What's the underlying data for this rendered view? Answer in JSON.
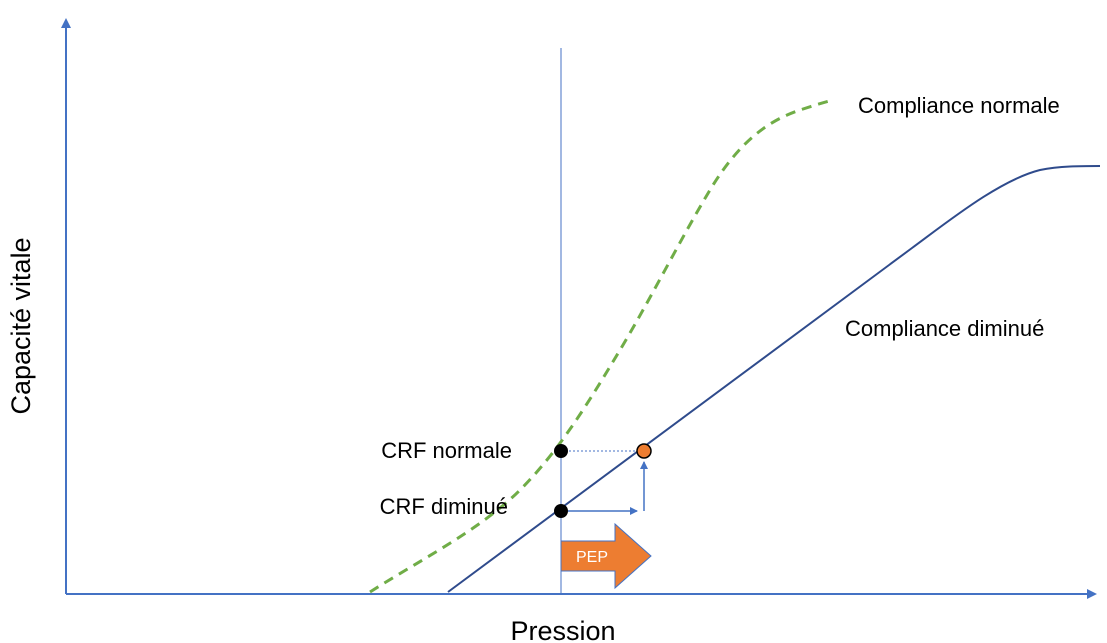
{
  "axes": {
    "x_label": "Pression",
    "y_label": "Capacité vitale"
  },
  "curves": {
    "normal": {
      "label": "Compliance normale",
      "color": "#70ad47",
      "style": "dashed"
    },
    "reduced": {
      "label": "Compliance diminué",
      "color": "#2f4b8c",
      "style": "solid"
    }
  },
  "points": {
    "crf_normal": {
      "label": "CRF normale",
      "color": "#000000"
    },
    "crf_reduced": {
      "label": "CRF diminué",
      "color": "#000000"
    },
    "after_pep": {
      "color": "#ed7d31"
    }
  },
  "pep_arrow": {
    "label": "PEP",
    "color": "#ed7d31",
    "border_color": "#4472c4"
  },
  "colors": {
    "axis": "#4472c4",
    "guide_line": "#4472c4",
    "text": "#000000"
  }
}
